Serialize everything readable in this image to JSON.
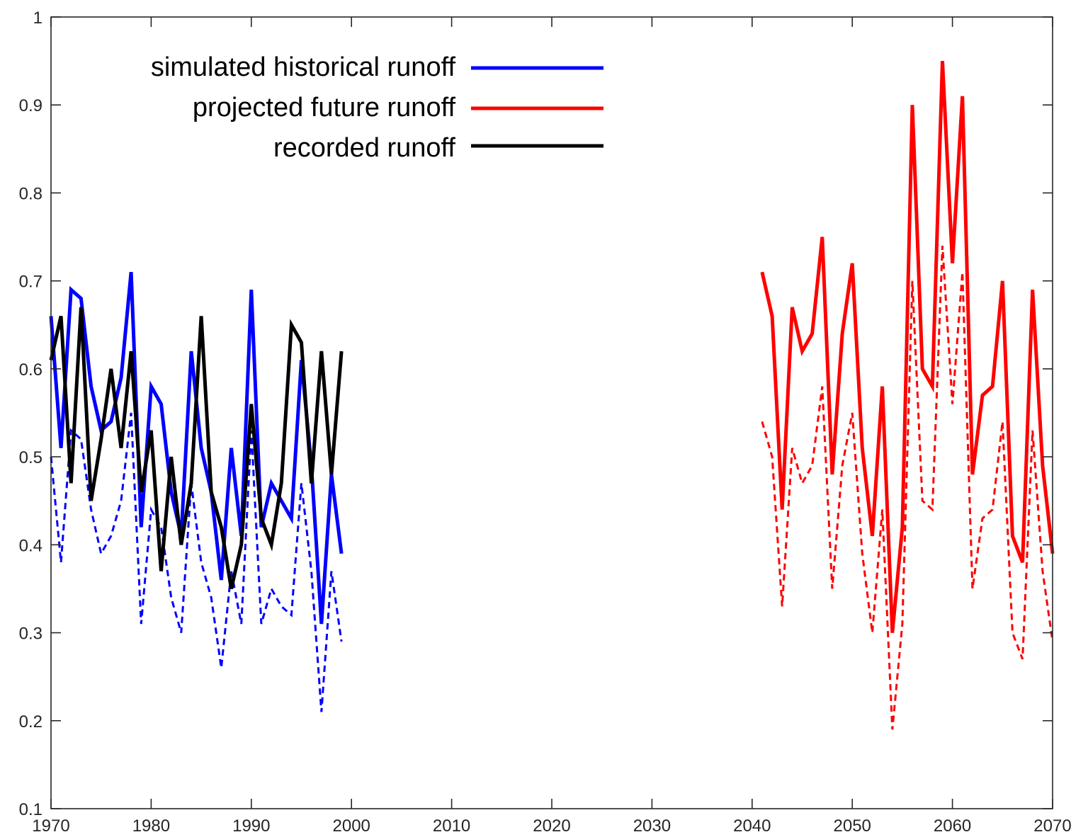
{
  "chart_data": {
    "type": "line",
    "title": "",
    "xlabel": "",
    "ylabel": "",
    "xlim": [
      1970,
      2070
    ],
    "ylim": [
      0.1,
      1
    ],
    "xticks": [
      "1970",
      "1980",
      "1990",
      "2000",
      "2010",
      "2020",
      "2030",
      "2040",
      "2050",
      "2060",
      "2070"
    ],
    "yticks": [
      "0.1",
      "0.2",
      "0.3",
      "0.4",
      "0.5",
      "0.6",
      "0.7",
      "0.8",
      "0.9",
      "1"
    ],
    "grid": false,
    "legend_position": "top-left",
    "legend": [
      {
        "label": "simulated historical runoff",
        "color": "#0000ff"
      },
      {
        "label": "projected future runoff",
        "color": "#ff0000"
      },
      {
        "label": "recorded runoff",
        "color": "#000000"
      }
    ],
    "series": [
      {
        "name": "simulated historical runoff",
        "color": "#0000ff",
        "style": "solid",
        "x": [
          1970,
          1971,
          1972,
          1973,
          1974,
          1975,
          1976,
          1977,
          1978,
          1979,
          1980,
          1981,
          1982,
          1983,
          1984,
          1985,
          1986,
          1987,
          1988,
          1989,
          1990,
          1991,
          1992,
          1993,
          1994,
          1995,
          1996,
          1997,
          1998,
          1999
        ],
        "y": [
          0.66,
          0.51,
          0.69,
          0.68,
          0.58,
          0.53,
          0.54,
          0.59,
          0.71,
          0.42,
          0.58,
          0.56,
          0.46,
          0.41,
          0.62,
          0.51,
          0.46,
          0.36,
          0.51,
          0.41,
          0.69,
          0.42,
          0.47,
          0.45,
          0.43,
          0.61,
          0.49,
          0.31,
          0.48,
          0.39
        ]
      },
      {
        "color": "#0000ff",
        "style": "dashed",
        "x": [
          1970,
          1971,
          1972,
          1973,
          1974,
          1975,
          1976,
          1977,
          1978,
          1979,
          1980,
          1981,
          1982,
          1983,
          1984,
          1985,
          1986,
          1987,
          1988,
          1989,
          1990,
          1991,
          1992,
          1993,
          1994,
          1995,
          1996,
          1997,
          1998,
          1999
        ],
        "y": [
          0.5,
          0.38,
          0.53,
          0.52,
          0.44,
          0.39,
          0.41,
          0.45,
          0.55,
          0.31,
          0.44,
          0.42,
          0.34,
          0.3,
          0.47,
          0.38,
          0.34,
          0.26,
          0.37,
          0.31,
          0.53,
          0.31,
          0.35,
          0.33,
          0.32,
          0.47,
          0.37,
          0.21,
          0.37,
          0.29
        ]
      },
      {
        "name": "recorded runoff",
        "color": "#000000",
        "style": "solid",
        "x": [
          1970,
          1971,
          1972,
          1973,
          1974,
          1975,
          1976,
          1977,
          1978,
          1979,
          1980,
          1981,
          1982,
          1983,
          1984,
          1985,
          1986,
          1987,
          1988,
          1989,
          1990,
          1991,
          1992,
          1993,
          1994,
          1995,
          1996,
          1997,
          1998,
          1999
        ],
        "y": [
          0.61,
          0.66,
          0.47,
          0.67,
          0.45,
          0.52,
          0.6,
          0.51,
          0.62,
          0.46,
          0.53,
          0.37,
          0.5,
          0.4,
          0.47,
          0.66,
          0.46,
          0.42,
          0.35,
          0.4,
          0.56,
          0.43,
          0.4,
          0.47,
          0.65,
          0.63,
          0.47,
          0.62,
          0.48,
          0.62
        ]
      },
      {
        "name": "projected future runoff",
        "color": "#ff0000",
        "style": "solid",
        "x": [
          2041,
          2042,
          2043,
          2044,
          2045,
          2046,
          2047,
          2048,
          2049,
          2050,
          2051,
          2052,
          2053,
          2054,
          2055,
          2056,
          2057,
          2058,
          2059,
          2060,
          2061,
          2062,
          2063,
          2064,
          2065,
          2066,
          2067,
          2068,
          2069,
          2070
        ],
        "y": [
          0.71,
          0.66,
          0.44,
          0.67,
          0.62,
          0.64,
          0.75,
          0.48,
          0.64,
          0.72,
          0.51,
          0.41,
          0.58,
          0.3,
          0.42,
          0.9,
          0.6,
          0.58,
          0.95,
          0.72,
          0.91,
          0.48,
          0.57,
          0.58,
          0.7,
          0.41,
          0.38,
          0.69,
          0.49,
          0.39
        ]
      },
      {
        "color": "#ff0000",
        "style": "dashed",
        "x": [
          2041,
          2042,
          2043,
          2044,
          2045,
          2046,
          2047,
          2048,
          2049,
          2050,
          2051,
          2052,
          2053,
          2054,
          2055,
          2056,
          2057,
          2058,
          2059,
          2060,
          2061,
          2062,
          2063,
          2064,
          2065,
          2066,
          2067,
          2068,
          2069,
          2070
        ],
        "y": [
          0.54,
          0.5,
          0.33,
          0.51,
          0.47,
          0.49,
          0.58,
          0.35,
          0.49,
          0.55,
          0.39,
          0.3,
          0.44,
          0.19,
          0.31,
          0.7,
          0.45,
          0.44,
          0.74,
          0.56,
          0.71,
          0.35,
          0.43,
          0.44,
          0.54,
          0.3,
          0.27,
          0.53,
          0.37,
          0.29
        ]
      }
    ]
  }
}
